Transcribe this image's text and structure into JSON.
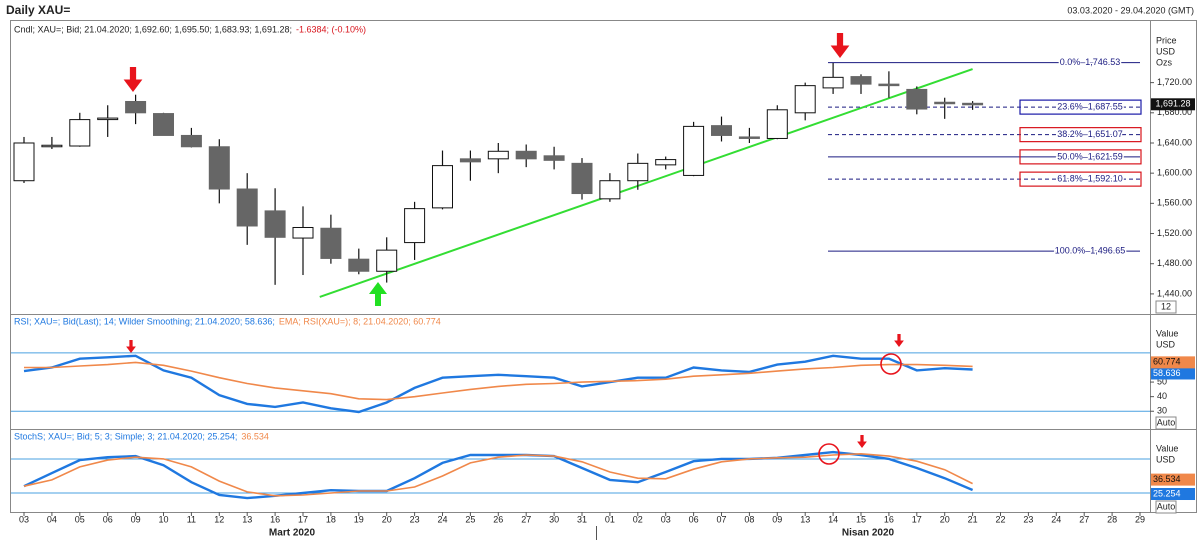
{
  "header": {
    "title": "Daily XAU=",
    "range": "03.03.2020 - 29.04.2020 (GMT)"
  },
  "chart_data": [
    {
      "type": "candlestick",
      "legend": "Cndl; XAU=; Bid; 21.04.2020; 1,692.60; 1,695.50; 1,683.93; 1,691.28;",
      "change": "-1.6384; (-0.10%)",
      "axis_title": [
        "Price",
        "USD",
        "Ozs"
      ],
      "categories": [
        "03",
        "04",
        "05",
        "06",
        "09",
        "10",
        "11",
        "12",
        "13",
        "16",
        "17",
        "18",
        "19",
        "20",
        "23",
        "24",
        "25",
        "26",
        "27",
        "30",
        "31",
        "01",
        "02",
        "03",
        "06",
        "07",
        "08",
        "09",
        "13",
        "14",
        "15",
        "16",
        "17",
        "20",
        "21",
        "22",
        "23",
        "24",
        "27",
        "28",
        "29"
      ],
      "month_labels": [
        "Mart 2020",
        "Nisan 2020"
      ],
      "open": [
        1590,
        1635,
        1636,
        1672,
        1695,
        1679,
        1650,
        1635,
        1579,
        1550,
        1514,
        1527,
        1486,
        1470,
        1508,
        1554,
        1619,
        1619,
        1629,
        1623,
        1613,
        1566,
        1590,
        1611,
        1597,
        1663,
        1648,
        1646,
        1680,
        1713,
        1728,
        1718,
        1711,
        1694,
        1692.6,
        null,
        null,
        null,
        null,
        null,
        null
      ],
      "high": [
        1648,
        1648,
        1680,
        1690,
        1704,
        1680,
        1660,
        1645,
        1600,
        1580,
        1556,
        1545,
        1500,
        1515,
        1562,
        1630,
        1630,
        1640,
        1638,
        1635,
        1620,
        1600,
        1626,
        1622,
        1668,
        1675,
        1660,
        1690,
        1720,
        1746,
        1731,
        1735,
        1715,
        1700,
        1695.5,
        null,
        null,
        null,
        null,
        null,
        null
      ],
      "low": [
        1587,
        1632,
        1635,
        1648,
        1665,
        1650,
        1634,
        1560,
        1505,
        1452,
        1465,
        1480,
        1466,
        1455,
        1485,
        1552,
        1590,
        1600,
        1608,
        1605,
        1565,
        1562,
        1578,
        1605,
        1596,
        1642,
        1640,
        1645,
        1670,
        1705,
        1705,
        1700,
        1678,
        1672,
        1683.93,
        null,
        null,
        null,
        null,
        null,
        null
      ],
      "close": [
        1640,
        1637,
        1671,
        1673,
        1680,
        1650,
        1635,
        1579,
        1530,
        1515,
        1528,
        1487,
        1470,
        1498,
        1553,
        1610,
        1615,
        1629,
        1619,
        1617,
        1573,
        1590,
        1613,
        1618,
        1662,
        1650,
        1647,
        1684,
        1716,
        1727,
        1718,
        1716,
        1685,
        1693,
        1691.28,
        null,
        null,
        null,
        null,
        null,
        null
      ],
      "color_up": "#ffffff",
      "color_down": "#666666",
      "ylim": [
        1416,
        1803
      ],
      "yticks": [
        {
          "value": 1440,
          "label": "1,440.00"
        },
        {
          "value": 1480,
          "label": "1,480.00"
        },
        {
          "value": 1520,
          "label": "1,520.00"
        },
        {
          "value": 1560,
          "label": "1,560.00"
        },
        {
          "value": 1600,
          "label": "1,600.00"
        },
        {
          "value": 1640,
          "label": "1,640.00"
        },
        {
          "value": 1680,
          "label": "1,680.00"
        },
        {
          "value": 1720,
          "label": "1,720.00"
        }
      ],
      "last_price": {
        "value": 1691.28,
        "label": "1,691.28"
      },
      "scale_box": "12",
      "fib_levels": [
        {
          "value": 1746.53,
          "label": "0.0%–1,746.53",
          "dashed": false,
          "box": null
        },
        {
          "value": 1687.55,
          "label": "23.6%–1,687.55",
          "dashed": true,
          "box": "#1a1aa8"
        },
        {
          "value": 1651.07,
          "label": "38.2%–1,651.07",
          "dashed": true,
          "box": "#d8141c"
        },
        {
          "value": 1621.59,
          "label": "50.0%–1,621.59",
          "dashed": false,
          "box": "#d8141c"
        },
        {
          "value": 1592.1,
          "label": "61.8%–1,592.10",
          "dashed": true,
          "box": "#d8141c"
        },
        {
          "value": 1496.65,
          "label": "100.0%–1,496.65",
          "dashed": false,
          "box": null
        }
      ],
      "fib_color": "#1a1a80",
      "trendline": {
        "x": [
          10.6,
          34
        ],
        "y": [
          1436,
          1738
        ],
        "color": "#33dd33"
      }
    },
    {
      "type": "line",
      "axis_title": [
        "Value",
        "USD"
      ],
      "scale_box": "Auto",
      "ylim": [
        18.5,
        96
      ],
      "yticks": [
        30,
        40,
        50
      ],
      "levels": [
        30,
        70
      ],
      "series": [
        {
          "name": "RSI; XAU=; Bid(Last); 14; Wilder Smoothing; 21.04.2020; 58.636;",
          "color": "#1f78e0",
          "values": [
            57.5,
            60,
            66,
            67,
            68,
            58,
            53,
            41,
            35,
            33,
            36,
            32,
            29.5,
            36,
            46,
            53,
            54,
            55,
            54,
            53,
            47,
            50,
            53,
            53,
            60,
            58,
            57,
            62,
            64,
            68,
            66,
            66,
            58,
            59.5,
            58.636,
            null,
            null,
            null,
            null,
            null,
            null
          ]
        },
        {
          "name": "EMA; RSI(XAU=); 8; 21.04.2020; 60.774",
          "color": "#f0884a",
          "values": [
            60,
            60,
            61,
            62,
            63.5,
            61.5,
            57.5,
            53,
            49,
            46,
            44,
            42,
            38.5,
            38,
            40,
            42.5,
            45,
            47,
            48.5,
            49,
            50,
            50.5,
            51,
            52,
            54,
            55,
            56,
            57.5,
            59,
            60,
            61.5,
            62,
            62,
            61.5,
            60.774,
            null,
            null,
            null,
            null,
            null,
            null
          ]
        }
      ]
    },
    {
      "type": "line",
      "axis_title": [
        "Value",
        "USD"
      ],
      "scale_box": "Auto",
      "ylim": [
        -13.5,
        131
      ],
      "levels": [
        20,
        80
      ],
      "series": [
        {
          "name": "StochS; XAU=; Bid; 5; 3; Simple; 3; 21.04.2020; 25.254;",
          "color": "#1f78e0",
          "values": [
            32,
            55,
            78,
            83,
            85,
            69,
            39,
            16.5,
            11,
            15,
            20,
            25,
            23.5,
            23.5,
            46,
            73,
            87,
            87,
            87,
            85,
            64,
            43,
            39,
            57,
            76,
            80,
            80,
            82,
            87,
            92,
            87,
            80,
            64,
            46,
            25.254,
            null,
            null,
            null,
            null,
            null,
            null
          ]
        },
        {
          "name": "36.534",
          "color": "#f0884a",
          "values": [
            32,
            43,
            66,
            78,
            83,
            80,
            66,
            41,
            22,
            15,
            16.5,
            20,
            23.5,
            23.5,
            30.5,
            50,
            73,
            83,
            87,
            85,
            75,
            57,
            46,
            45,
            62,
            75,
            80,
            82,
            83,
            87,
            89,
            85,
            76,
            61,
            36.534,
            null,
            null,
            null,
            null,
            null,
            null
          ]
        }
      ]
    }
  ]
}
